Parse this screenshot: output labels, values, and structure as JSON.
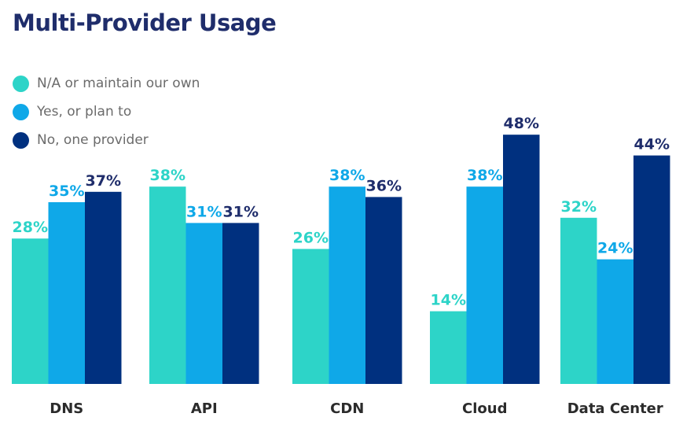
{
  "chart_data": {
    "type": "bar",
    "title": "Multi-Provider Usage",
    "categories": [
      "DNS",
      "API",
      "CDN",
      "Cloud",
      "Data Center"
    ],
    "series": [
      {
        "name": "N/A or maintain our own",
        "color": "#2dd4c8",
        "label_color": "#2dd4c8",
        "values": [
          28,
          38,
          26,
          14,
          32
        ]
      },
      {
        "name": "Yes, or plan to",
        "color": "#0fa8e8",
        "label_color": "#0fa8e8",
        "values": [
          35,
          31,
          38,
          38,
          24
        ]
      },
      {
        "name": "No, one provider",
        "color": "#00307f",
        "label_color": "#1f2d6b",
        "values": [
          37,
          31,
          36,
          48,
          44
        ]
      }
    ],
    "value_suffix": "%",
    "ylim": [
      0,
      50
    ],
    "grid": false,
    "legend_position": "top-left"
  }
}
